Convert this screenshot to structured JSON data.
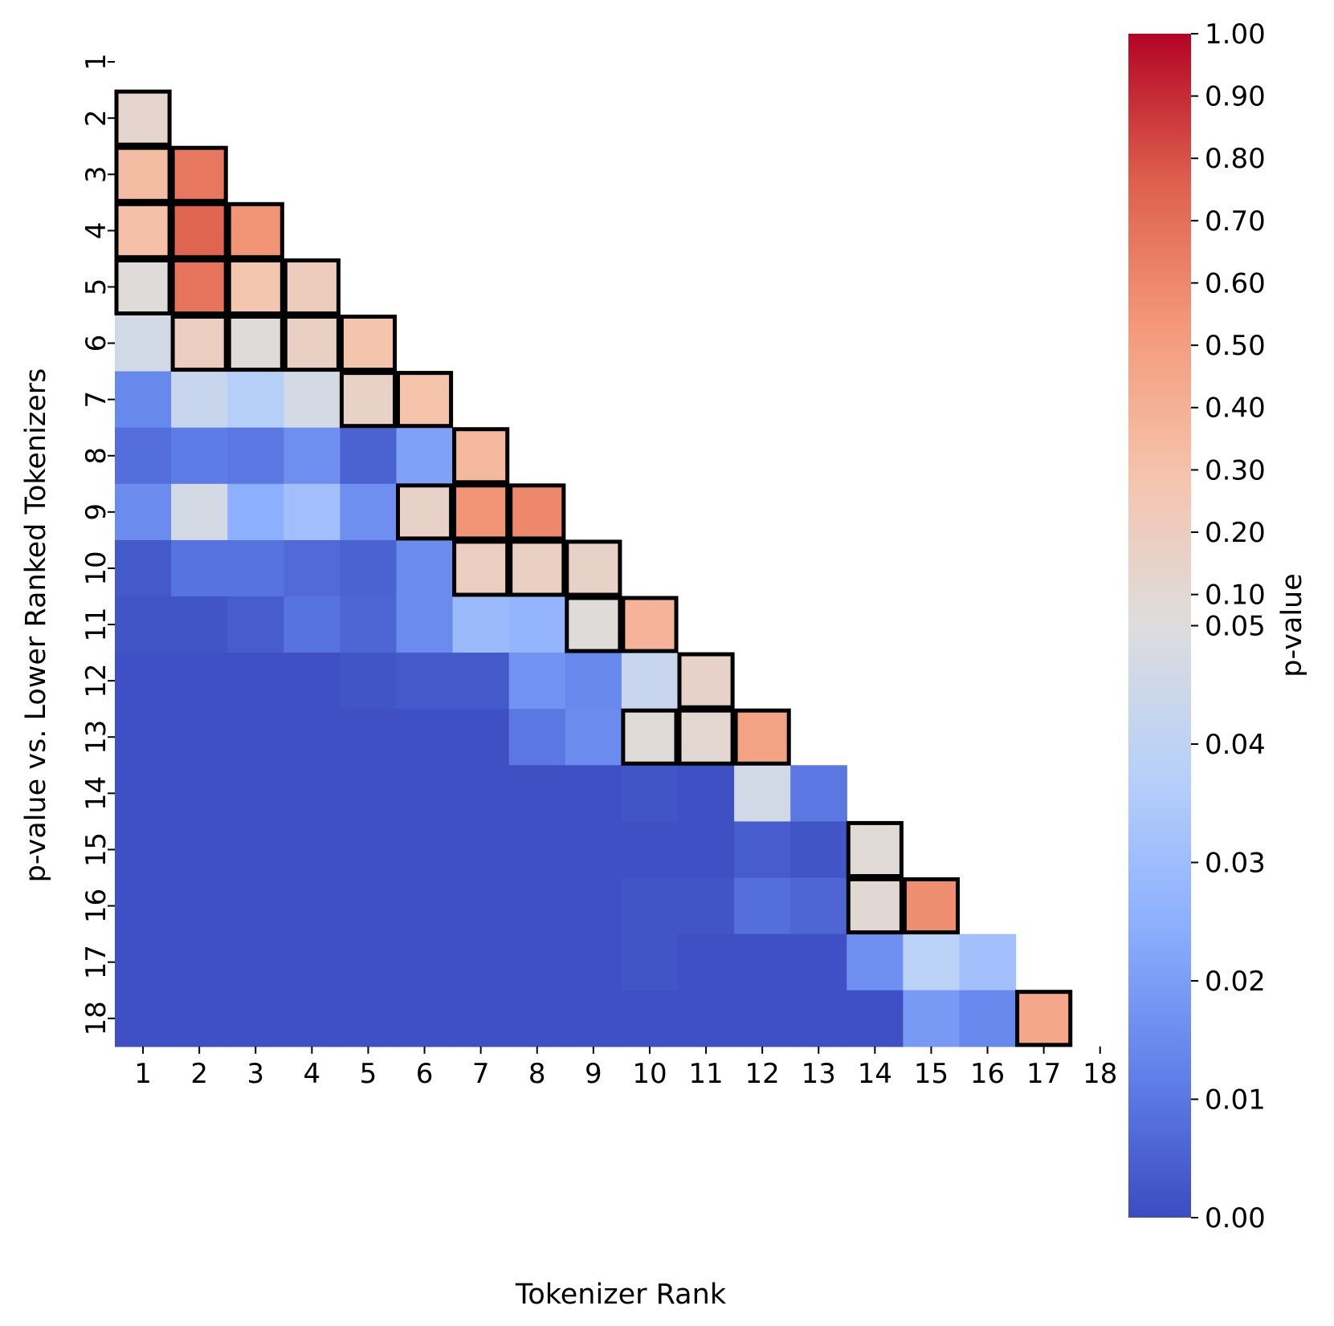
{
  "chart_data": {
    "type": "heatmap",
    "xlabel": "Tokenizer Rank",
    "ylabel": "p-value vs. Lower Ranked Tokenizers",
    "x_ticks": [
      "1",
      "2",
      "3",
      "4",
      "5",
      "6",
      "7",
      "8",
      "9",
      "10",
      "11",
      "12",
      "13",
      "14",
      "15",
      "16",
      "17",
      "18"
    ],
    "y_ticks": [
      "1",
      "2",
      "3",
      "4",
      "5",
      "6",
      "7",
      "8",
      "9",
      "10",
      "11",
      "12",
      "13",
      "14",
      "15",
      "16",
      "17",
      "18"
    ],
    "colormap": "coolwarm",
    "colorbar": {
      "label": "p-value",
      "tick_values": [
        0.0,
        0.01,
        0.02,
        0.03,
        0.04,
        0.05,
        0.1,
        0.2,
        0.3,
        0.4,
        0.5,
        0.6,
        0.7,
        0.8,
        0.9,
        1.0
      ],
      "tick_labels": [
        "0.00",
        "0.01",
        "0.02",
        "0.03",
        "0.04",
        "0.05",
        "0.10",
        "0.20",
        "0.30",
        "0.40",
        "0.50",
        "0.60",
        "0.70",
        "0.80",
        "0.90",
        "1.00"
      ]
    },
    "mask": "upper-triangle-including-diagonal",
    "highlight_rule": "cells with p >= 0.05 outlined in black",
    "matrix": [
      [
        null,
        null,
        null,
        null,
        null,
        null,
        null,
        null,
        null,
        null,
        null,
        null,
        null,
        null,
        null,
        null,
        null,
        null
      ],
      [
        0.13,
        null,
        null,
        null,
        null,
        null,
        null,
        null,
        null,
        null,
        null,
        null,
        null,
        null,
        null,
        null,
        null,
        null
      ],
      [
        0.33,
        0.67,
        null,
        null,
        null,
        null,
        null,
        null,
        null,
        null,
        null,
        null,
        null,
        null,
        null,
        null,
        null,
        null
      ],
      [
        0.31,
        0.74,
        0.55,
        null,
        null,
        null,
        null,
        null,
        null,
        null,
        null,
        null,
        null,
        null,
        null,
        null,
        null,
        null
      ],
      [
        0.07,
        0.68,
        0.28,
        0.21,
        null,
        null,
        null,
        null,
        null,
        null,
        null,
        null,
        null,
        null,
        null,
        null,
        null,
        null
      ],
      [
        0.046,
        0.2,
        0.07,
        0.18,
        0.29,
        null,
        null,
        null,
        null,
        null,
        null,
        null,
        null,
        null,
        null,
        null,
        null,
        null
      ],
      [
        0.014,
        0.043,
        0.037,
        0.047,
        0.16,
        0.3,
        null,
        null,
        null,
        null,
        null,
        null,
        null,
        null,
        null,
        null,
        null,
        null
      ],
      [
        0.008,
        0.011,
        0.01,
        0.016,
        0.005,
        0.021,
        0.35,
        null,
        null,
        null,
        null,
        null,
        null,
        null,
        null,
        null,
        null,
        null
      ],
      [
        0.015,
        0.047,
        0.025,
        0.031,
        0.016,
        0.16,
        0.55,
        0.6,
        null,
        null,
        null,
        null,
        null,
        null,
        null,
        null,
        null,
        null
      ],
      [
        0.003,
        0.009,
        0.009,
        0.007,
        0.005,
        0.015,
        0.2,
        0.18,
        0.16,
        null,
        null,
        null,
        null,
        null,
        null,
        null,
        null,
        null
      ],
      [
        0.002,
        0.002,
        0.004,
        0.009,
        0.006,
        0.015,
        0.029,
        0.027,
        0.07,
        0.38,
        null,
        null,
        null,
        null,
        null,
        null,
        null,
        null
      ],
      [
        0.001,
        0.001,
        0.001,
        0.001,
        0.002,
        0.003,
        0.003,
        0.017,
        0.014,
        0.043,
        0.15,
        null,
        null,
        null,
        null,
        null,
        null,
        null
      ],
      [
        0.001,
        0.001,
        0.001,
        0.001,
        0.001,
        0.001,
        0.001,
        0.01,
        0.015,
        0.08,
        0.11,
        0.48,
        null,
        null,
        null,
        null,
        null,
        null
      ],
      [
        0.001,
        0.001,
        0.001,
        0.001,
        0.001,
        0.001,
        0.001,
        0.001,
        0.001,
        0.002,
        0.001,
        0.046,
        0.01,
        null,
        null,
        null,
        null,
        null
      ],
      [
        0.001,
        0.001,
        0.001,
        0.001,
        0.001,
        0.001,
        0.001,
        0.001,
        0.001,
        0.001,
        0.001,
        0.004,
        0.002,
        0.09,
        null,
        null,
        null,
        null
      ],
      [
        0.001,
        0.001,
        0.001,
        0.001,
        0.001,
        0.001,
        0.001,
        0.001,
        0.001,
        0.002,
        0.002,
        0.008,
        0.006,
        0.1,
        0.58,
        null,
        null,
        null
      ],
      [
        0.001,
        0.001,
        0.001,
        0.001,
        0.001,
        0.001,
        0.001,
        0.001,
        0.001,
        0.002,
        0.001,
        0.001,
        0.001,
        0.016,
        0.039,
        0.031,
        null,
        null
      ],
      [
        0.001,
        0.001,
        0.001,
        0.001,
        0.001,
        0.001,
        0.001,
        0.001,
        0.001,
        0.001,
        0.001,
        0.001,
        0.001,
        0.001,
        0.019,
        0.014,
        0.45,
        null
      ]
    ]
  }
}
